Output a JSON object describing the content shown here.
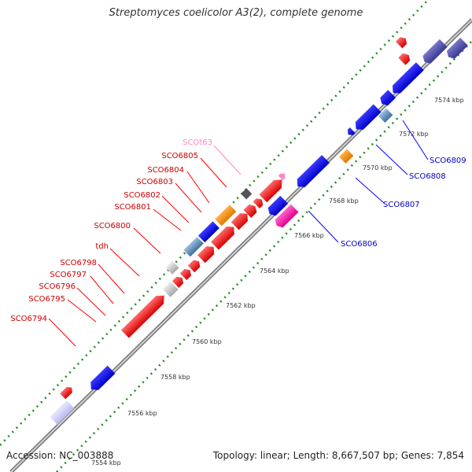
{
  "title": "Streptomyces coelicolor A3(2), complete genome",
  "footer": {
    "accession": "Accession: NC_003888",
    "summary": "Topology: linear; Length: 8,667,507 bp; Genes: 7,854"
  },
  "colors": {
    "forward_cds": "#ff0000",
    "reverse_cds": "#0000ff",
    "backbone": "#999999",
    "tick_dots": "#228b22",
    "rna_label": "#ff88c0"
  },
  "scale": {
    "ticks": [
      "7554 kbp",
      "7556 kbp",
      "7558 kbp",
      "7560 kbp",
      "7562 kbp",
      "7564 kbp",
      "7566 kbp",
      "7568 kbp",
      "7570 kbp",
      "7572 kbp",
      "7574 kbp"
    ]
  },
  "genes_forward": [
    "SCO6794",
    "SCO6795",
    "SCO6796",
    "SCO6797",
    "SCO6798",
    "tdh",
    "SCO6800",
    "SCO6801",
    "SCO6802",
    "SCO6803",
    "SCO6804",
    "SCO6805",
    "SCOt63"
  ],
  "genes_reverse": [
    "SCO6806",
    "SCO6807",
    "SCO6808",
    "SCO6809"
  ]
}
